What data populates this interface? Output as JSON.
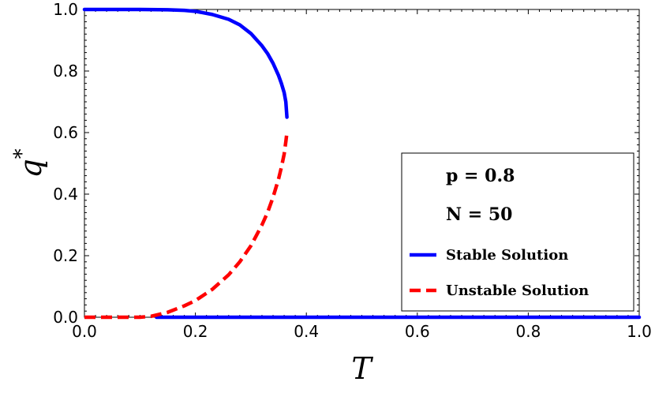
{
  "chart_data": {
    "type": "line",
    "xlabel": "T",
    "ylabel": "q",
    "ylabel_superscript": "*",
    "xlim": [
      0.0,
      1.0
    ],
    "ylim": [
      0.0,
      1.0
    ],
    "x_ticks": [
      "0.0",
      "0.2",
      "0.4",
      "0.6",
      "0.8",
      "1.0"
    ],
    "y_ticks": [
      "0.0",
      "0.2",
      "0.4",
      "0.6",
      "0.8",
      "1.0"
    ],
    "grid": false,
    "legend": {
      "placement": "bottom-right",
      "params": [
        "p = 0.8",
        "N = 50"
      ],
      "entries": [
        "Stable Solution",
        "Unstable Solution"
      ]
    },
    "series": [
      {
        "name": "Stable Solution",
        "color": "#0000ff",
        "style": "solid",
        "segments": [
          [
            [
              0.0,
              1.0
            ],
            [
              0.05,
              1.0
            ],
            [
              0.1,
              1.0
            ],
            [
              0.15,
              0.999
            ],
            [
              0.18,
              0.997
            ],
            [
              0.2,
              0.994
            ],
            [
              0.23,
              0.984
            ],
            [
              0.26,
              0.968
            ],
            [
              0.28,
              0.95
            ],
            [
              0.3,
              0.922
            ],
            [
              0.32,
              0.882
            ],
            [
              0.33,
              0.857
            ],
            [
              0.34,
              0.825
            ],
            [
              0.35,
              0.785
            ],
            [
              0.355,
              0.76
            ],
            [
              0.36,
              0.73
            ],
            [
              0.363,
              0.7
            ],
            [
              0.365,
              0.65
            ]
          ],
          [
            [
              0.13,
              0.0
            ],
            [
              1.0,
              0.0
            ]
          ]
        ]
      },
      {
        "name": "Unstable Solution",
        "color": "#ff0000",
        "style": "dashed",
        "segments": [
          [
            [
              0.0,
              0.0
            ],
            [
              0.1,
              0.0
            ],
            [
              0.12,
              0.003
            ],
            [
              0.15,
              0.016
            ],
            [
              0.18,
              0.037
            ],
            [
              0.2,
              0.054
            ],
            [
              0.23,
              0.09
            ],
            [
              0.26,
              0.138
            ],
            [
              0.28,
              0.18
            ],
            [
              0.3,
              0.232
            ],
            [
              0.32,
              0.3
            ],
            [
              0.33,
              0.34
            ],
            [
              0.34,
              0.39
            ],
            [
              0.35,
              0.45
            ],
            [
              0.355,
              0.487
            ],
            [
              0.36,
              0.53
            ],
            [
              0.363,
              0.57
            ],
            [
              0.365,
              0.6
            ]
          ]
        ]
      }
    ]
  }
}
